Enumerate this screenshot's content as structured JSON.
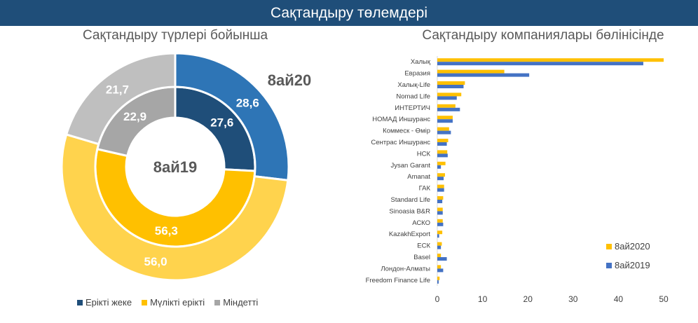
{
  "header": {
    "title": "Сақтандыру төлемдері"
  },
  "left_subtitle": "Сақтандыру түрлері бойынша",
  "right_subtitle": "Сақтандыру компаниялары бөлінісінде",
  "colors": {
    "banner": "#1f4e79",
    "dark_blue": "#1f4e79",
    "mid_blue": "#2e75b6",
    "yellow_inner": "#ffc000",
    "yellow_outer": "#ffd34d",
    "gray_inner": "#a6a6a6",
    "gray_outer": "#bfbfbf",
    "bar_2020": "#ffc000",
    "bar_2019": "#4472c4"
  },
  "chart_data": [
    {
      "type": "pie",
      "subtype": "doughnut",
      "title": "Сақтандыру түрлері бойынша",
      "center_label": "8ай19",
      "outer_ring_label": "8ай20",
      "categories": [
        "Ерікті жеке",
        "Мүлікті ерікті",
        "Міндетті"
      ],
      "series": [
        {
          "name": "8ай19",
          "ring": "inner",
          "values": [
            27.6,
            56.3,
            22.9
          ],
          "labels": [
            "27,6",
            "56,3",
            "22,9"
          ]
        },
        {
          "name": "8ай20",
          "ring": "outer",
          "values": [
            28.6,
            56.0,
            21.7
          ],
          "labels": [
            "28,6",
            "56,0",
            "21,7"
          ]
        }
      ],
      "legend": [
        {
          "label": "Ерікті жеке",
          "color": "#1f4e79"
        },
        {
          "label": "Мүлікті ерікті",
          "color": "#ffc000"
        },
        {
          "label": "Міндетті",
          "color": "#a6a6a6"
        }
      ],
      "legend_position": "bottom"
    },
    {
      "type": "bar",
      "orientation": "horizontal",
      "title": "Сақтандыру компаниялары бөлінісінде",
      "categories": [
        "Халық",
        "Евразия",
        "Халық-Life",
        "Nomad Life",
        "ИНТЕРТИЧ",
        "НОМАД Иншуранс",
        "Коммеск - Өмір",
        "Сентрас Иншуранс",
        "НСК",
        "Jysan Garant",
        "Amanat",
        "ГАК",
        "Standard Life",
        "Sinoasia B&R",
        "АСКО",
        "KazakhExport",
        "ЕСК",
        "Basel",
        "Лондон-Алматы",
        "Freedom Finance Life"
      ],
      "series": [
        {
          "name": "8ай2020",
          "values": [
            50,
            14.8,
            6.1,
            5.3,
            4.0,
            3.4,
            2.6,
            2.4,
            2.2,
            1.8,
            1.7,
            1.5,
            1.3,
            1.2,
            1.2,
            1.1,
            1.0,
            0.8,
            0.8,
            0.5
          ]
        },
        {
          "name": "8ай2019",
          "values": [
            45.5,
            20.3,
            5.8,
            4.3,
            5.0,
            3.4,
            3.0,
            2.1,
            2.3,
            0.8,
            1.4,
            1.5,
            1.1,
            1.2,
            1.3,
            0.4,
            0.8,
            2.1,
            1.3,
            0.3
          ]
        }
      ],
      "xlim": [
        0,
        50
      ],
      "xticks": [
        0,
        10,
        20,
        30,
        40,
        50
      ],
      "legend_position": "bottom-right",
      "grid": false
    }
  ]
}
